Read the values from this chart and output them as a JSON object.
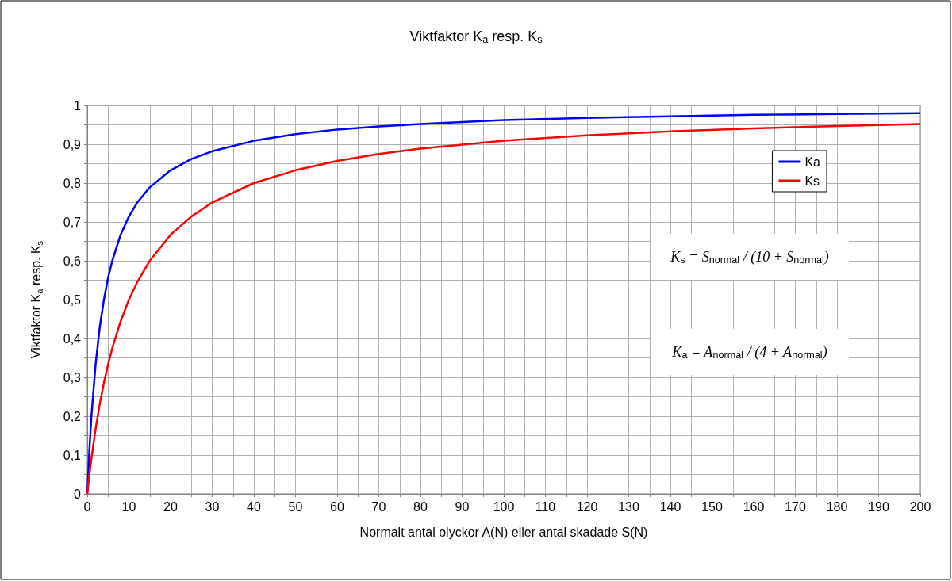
{
  "chart_data": {
    "type": "line",
    "title": "Viktfaktor K$_{a}$ resp. K$_{s}$",
    "xlabel": "Normalt antal olyckor A(N) eller antal skadade S(N)",
    "ylabel": "Viktfaktor K$_{a}$ resp. K$_{s}$",
    "x": [
      0,
      0.5,
      1,
      2,
      3,
      4,
      5,
      6,
      8,
      10,
      12,
      15,
      20,
      25,
      30,
      40,
      50,
      60,
      70,
      80,
      100,
      120,
      140,
      160,
      180,
      200
    ],
    "series": [
      {
        "name": "Ka",
        "color": "#0000ff",
        "values": [
          0,
          0.111,
          0.2,
          0.333,
          0.429,
          0.5,
          0.556,
          0.6,
          0.667,
          0.714,
          0.75,
          0.789,
          0.833,
          0.862,
          0.882,
          0.909,
          0.926,
          0.938,
          0.946,
          0.952,
          0.962,
          0.968,
          0.972,
          0.976,
          0.978,
          0.98
        ]
      },
      {
        "name": "Ks",
        "color": "#ff0000",
        "values": [
          0,
          0.048,
          0.091,
          0.167,
          0.231,
          0.286,
          0.333,
          0.375,
          0.444,
          0.5,
          0.545,
          0.6,
          0.667,
          0.714,
          0.75,
          0.8,
          0.833,
          0.857,
          0.875,
          0.889,
          0.909,
          0.923,
          0.933,
          0.941,
          0.947,
          0.952
        ]
      }
    ],
    "annotations": [
      "K$_{s}$ = S$_{normal}$ / (10 + S$_{normal}$)",
      "K$_{a}$ = A$_{normal}$ / (4 + A$_{normal}$)"
    ],
    "xlim": [
      0,
      200
    ],
    "xticks": [
      0,
      {
        "value": 5,
        "label": null
      },
      10,
      {
        "value": 15,
        "label": null
      },
      20,
      {
        "value": 25,
        "label": null
      },
      30,
      {
        "value": 35,
        "label": null
      },
      40,
      {
        "value": 45,
        "label": null
      },
      50,
      {
        "value": 55,
        "label": null
      },
      60,
      {
        "value": 65,
        "label": null
      },
      70,
      {
        "value": 75,
        "label": null
      },
      80,
      {
        "value": 85,
        "label": null
      },
      90,
      {
        "value": 95,
        "label": null
      },
      100,
      {
        "value": 105,
        "label": null
      },
      110,
      {
        "value": 115,
        "label": null
      },
      120,
      {
        "value": 125,
        "label": null
      },
      130,
      {
        "value": 135,
        "label": null
      },
      140,
      {
        "value": 145,
        "label": null
      },
      150,
      {
        "value": 155,
        "label": null
      },
      160,
      {
        "value": 165,
        "label": null
      },
      170,
      {
        "value": 175,
        "label": null
      },
      180,
      {
        "value": 185,
        "label": null
      },
      190,
      {
        "value": 195,
        "label": null
      },
      200
    ],
    "ylim": [
      0,
      1
    ],
    "yticks": [
      0,
      {
        "value": 0.05,
        "label": null
      },
      {
        "value": 0.1,
        "label": "0,1"
      },
      {
        "value": 0.15,
        "label": null
      },
      {
        "value": 0.2,
        "label": "0,2"
      },
      {
        "value": 0.25,
        "label": null
      },
      {
        "value": 0.3,
        "label": "0,3"
      },
      {
        "value": 0.35,
        "label": null
      },
      {
        "value": 0.4,
        "label": "0,4"
      },
      {
        "value": 0.45,
        "label": null
      },
      {
        "value": 0.5,
        "label": "0,5"
      },
      {
        "value": 0.55,
        "label": null
      },
      {
        "value": 0.6,
        "label": "0,6"
      },
      {
        "value": 0.65,
        "label": null
      },
      {
        "value": 0.7,
        "label": "0,7"
      },
      {
        "value": 0.75,
        "label": null
      },
      {
        "value": 0.8,
        "label": "0,8"
      },
      {
        "value": 0.85,
        "label": null
      },
      {
        "value": 0.9,
        "label": "0,9"
      },
      {
        "value": 0.95,
        "label": null
      },
      1
    ],
    "grid": true,
    "legend": "right",
    "marker": "none",
    "line_style": "solid"
  }
}
